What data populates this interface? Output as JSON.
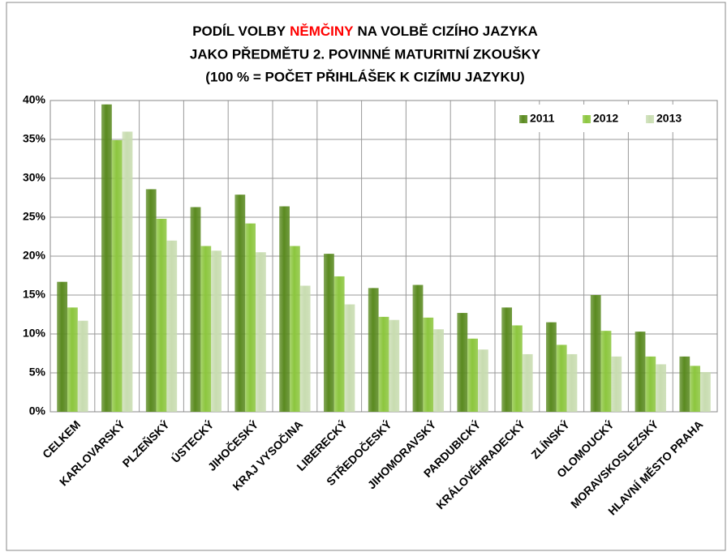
{
  "chart_data": {
    "type": "bar",
    "title_lines": [
      [
        "PODÍL VOLBY",
        "NĚMČINY",
        "NA VOLBĚ CIZÍHO JAZYKA"
      ],
      "JAKO PŘEDMĚTU 2. POVINNÉ MATURITNÍ ZKOUŠKY",
      "(100 % = POČET PŘIHLÁŠEK K CIZÍMU JAZYKU)"
    ],
    "title_highlight_color": "#ff0000",
    "categories": [
      "CELKEM",
      "KARLOVARSKÝ",
      "PLZEŇSKÝ",
      "ÚSTECKÝ",
      "JIHOČESKÝ",
      "KRAJ VYSOČINA",
      "LIBERECKÝ",
      "STŘEDOČESKÝ",
      "JIHOMORAVSKÝ",
      "PARDUBICKÝ",
      "KRÁLOVÉHRADECKÝ",
      "ZLÍNSKÝ",
      "OLOMOUCKÝ",
      "MORAVSKOSLEZSKÝ",
      "HLAVNÍ MĚSTO PRAHA"
    ],
    "series": [
      {
        "name": "2011",
        "color": "#5a8a20",
        "values": [
          16.7,
          39.5,
          28.6,
          26.3,
          27.9,
          26.4,
          20.3,
          15.9,
          16.3,
          12.7,
          13.4,
          11.5,
          15.0,
          10.3,
          7.1
        ]
      },
      {
        "name": "2012",
        "color": "#8cc63e",
        "values": [
          13.4,
          34.9,
          24.8,
          21.3,
          24.2,
          21.3,
          17.4,
          12.2,
          12.1,
          9.4,
          11.1,
          8.6,
          10.4,
          7.1,
          5.9
        ]
      },
      {
        "name": "2013",
        "color": "#c8dcb0",
        "values": [
          11.7,
          36.0,
          22.0,
          20.7,
          20.5,
          16.2,
          13.8,
          11.8,
          10.6,
          8.0,
          7.4,
          7.4,
          7.1,
          6.1,
          5.1
        ]
      }
    ],
    "ylim": [
      0,
      40
    ],
    "yticks": [
      {
        "value": 0,
        "label": "0%"
      },
      {
        "value": 5,
        "label": "5%"
      },
      {
        "value": 10,
        "label": "10%"
      },
      {
        "value": 15,
        "label": "15%"
      },
      {
        "value": 20,
        "label": "20%"
      },
      {
        "value": 25,
        "label": "25%"
      },
      {
        "value": 30,
        "label": "30%"
      },
      {
        "value": 35,
        "label": "35%"
      },
      {
        "value": 40,
        "label": "40%"
      }
    ],
    "grid": true,
    "legend": "top-right"
  }
}
